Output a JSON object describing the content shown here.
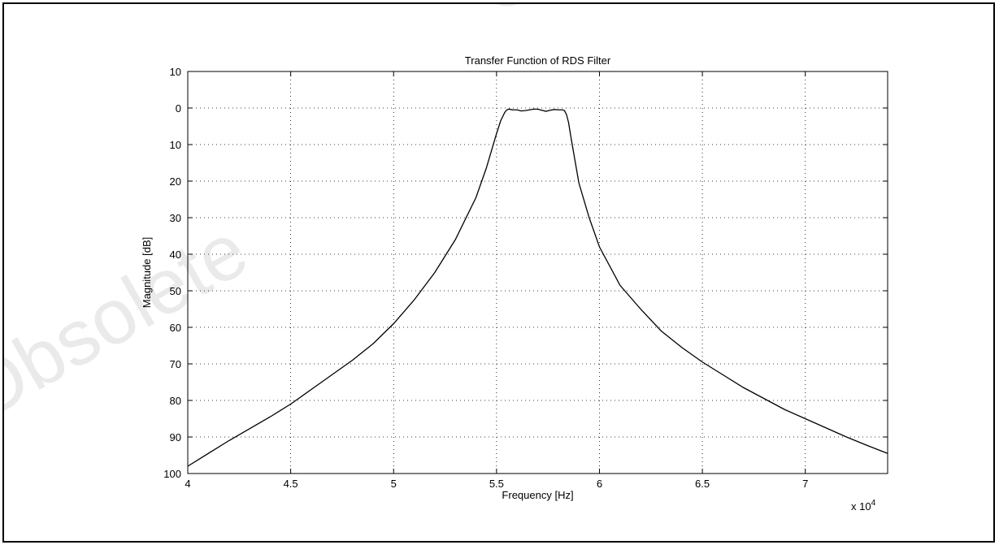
{
  "watermark_text": "Obsolete",
  "chart_data": {
    "type": "line",
    "title": "Transfer Function of RDS Filter",
    "xlabel": "Frequency [Hz]",
    "ylabel": "Magnitude [dB]",
    "x_exponent_label": "x 10",
    "x_exponent_power": "4",
    "xlim": [
      40000,
      74000
    ],
    "ylim": [
      -100,
      10
    ],
    "grid": true,
    "x_ticks": [
      40000,
      45000,
      50000,
      55000,
      60000,
      65000,
      70000
    ],
    "x_tick_labels": [
      "4",
      "4.5",
      "5",
      "5.5",
      "6",
      "6.5",
      "7"
    ],
    "y_ticks": [
      10,
      0,
      -10,
      -20,
      -30,
      -40,
      -50,
      -60,
      -70,
      -80,
      -90,
      -100
    ],
    "y_tick_labels": [
      "10",
      "0",
      "10",
      "20",
      "30",
      "40",
      "50",
      "60",
      "70",
      "80",
      "90",
      "100"
    ],
    "series": [
      {
        "x": [
          40000,
          42000,
          44000,
          45000,
          46000,
          47000,
          48000,
          49000,
          50000,
          51000,
          52000,
          53000,
          54000,
          54500,
          55000,
          55200,
          55400,
          55500,
          55600,
          55700,
          55800,
          56000,
          56200,
          56400,
          56600,
          56800,
          57000,
          57200,
          57400,
          57600,
          57800,
          58000,
          58200,
          58300,
          58400,
          58500,
          58600,
          58800,
          59000,
          59500,
          60000,
          61000,
          62000,
          63000,
          64000,
          65000,
          66000,
          67000,
          68000,
          69000,
          70000,
          71000,
          72000,
          73000,
          74000
        ],
        "y": [
          -98,
          -91,
          -84.5,
          -81,
          -77,
          -73,
          -69,
          -64.5,
          -59,
          -52.5,
          -45,
          -36,
          -24.5,
          -16.5,
          -7,
          -3.5,
          -1.2,
          -0.5,
          -0.3,
          -0.4,
          -0.5,
          -0.5,
          -0.8,
          -0.7,
          -0.5,
          -0.3,
          -0.3,
          -0.6,
          -0.9,
          -0.6,
          -0.4,
          -0.5,
          -0.5,
          -0.7,
          -1.8,
          -4,
          -7.5,
          -14,
          -20.5,
          -30,
          -38,
          -48.5,
          -55,
          -61,
          -65.5,
          -69.5,
          -73,
          -76.5,
          -79.5,
          -82.5,
          -85,
          -87.5,
          -90,
          -92.3,
          -94.5
        ]
      }
    ]
  }
}
